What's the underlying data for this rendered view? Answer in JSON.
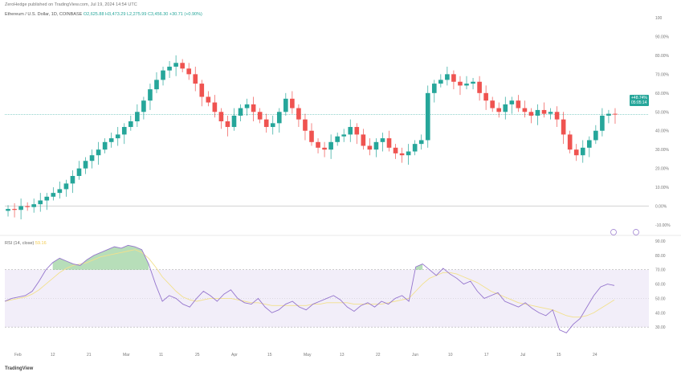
{
  "header": {
    "published": "ZeroHedge published on TradingView.com, Jul 19, 2024 14:54 UTC",
    "symbol": "Ethereum / U.S. Dollar, 1D, COINBASE",
    "ohlc": "O2,625.88 H3,473.29 L2,275.99 C3,456.30 +30.71 (+0.90%)"
  },
  "rsi_label": {
    "name": "RSI (14, close)",
    "value": "59.16"
  },
  "price_tags": {
    "pct": "+48.74%",
    "sub": "05:05:14"
  },
  "footer": {
    "brand": "TradingView"
  },
  "chart_data": [
    {
      "type": "candlestick",
      "yaxis_unit": "%",
      "ylim": [
        -10,
        100
      ],
      "yticks": [
        "100",
        "90.00%",
        "80.00%",
        "70.00%",
        "60.00%",
        "50.00%",
        "40.00%",
        "30.00%",
        "20.00%",
        "10.00%",
        "0.00%",
        "-10.00%"
      ],
      "x_tick_labels": [
        "Feb",
        "12",
        "21",
        "Mar",
        "11",
        "25",
        "Apr",
        "15",
        "May",
        "13",
        "22",
        "Jun",
        "10",
        "17",
        "Jul",
        "15",
        "24"
      ],
      "series": [
        {
          "name": "price_pct",
          "values": [
            -1.5,
            -2,
            0,
            -0.5,
            1,
            3,
            5,
            7,
            9,
            12,
            16,
            20,
            24,
            27,
            30,
            34,
            36,
            38,
            42,
            45,
            50,
            56,
            62,
            67,
            72,
            74,
            76,
            73,
            70,
            65,
            58,
            55,
            50,
            45,
            42,
            48,
            52,
            54,
            50,
            46,
            42,
            44,
            50,
            57,
            52,
            46,
            40,
            34,
            31,
            30,
            34,
            37,
            38,
            42,
            38,
            32,
            30,
            34,
            36,
            31,
            28,
            27,
            29,
            33,
            35,
            60,
            65,
            67,
            70,
            66,
            64,
            65,
            66,
            60,
            56,
            52,
            50,
            54,
            56,
            52,
            50,
            48,
            51,
            49,
            50,
            46,
            38,
            30,
            27,
            31,
            35,
            40,
            48,
            49,
            48.7
          ]
        }
      ]
    },
    {
      "type": "line",
      "name": "RSI (14, close)",
      "ylim": [
        20,
        90
      ],
      "yticks": [
        "90.00",
        "80.00",
        "70.00",
        "60.00",
        "50.00",
        "40.00",
        "30.00"
      ],
      "bands": [
        30,
        70
      ],
      "series": [
        {
          "name": "RSI",
          "values": [
            48,
            50,
            51,
            52,
            55,
            62,
            70,
            75,
            78,
            76,
            74,
            73,
            77,
            80,
            82,
            84,
            86,
            85,
            87,
            86,
            84,
            74,
            60,
            48,
            52,
            50,
            46,
            44,
            50,
            55,
            52,
            48,
            53,
            56,
            50,
            47,
            46,
            50,
            44,
            40,
            42,
            46,
            48,
            44,
            42,
            46,
            48,
            50,
            52,
            49,
            44,
            41,
            45,
            47,
            44,
            48,
            46,
            50,
            52,
            48,
            72,
            74,
            70,
            66,
            71,
            67,
            64,
            60,
            62,
            55,
            50,
            52,
            54,
            48,
            46,
            44,
            47,
            43,
            40,
            38,
            42,
            28,
            26,
            32,
            36,
            44,
            52,
            58,
            60,
            59
          ]
        },
        {
          "name": "MA",
          "values": [
            48,
            49,
            50,
            51,
            53,
            56,
            60,
            64,
            68,
            71,
            73,
            74,
            75,
            77,
            79,
            80,
            81,
            82,
            83,
            84,
            82,
            78,
            72,
            65,
            60,
            55,
            51,
            49,
            48,
            49,
            50,
            50,
            50,
            50,
            49,
            48,
            47,
            47,
            46,
            45,
            45,
            45,
            45,
            45,
            45,
            46,
            46,
            47,
            47,
            47,
            47,
            46,
            46,
            46,
            46,
            46,
            47,
            48,
            49,
            50,
            55,
            60,
            64,
            66,
            68,
            68,
            67,
            65,
            63,
            61,
            58,
            55,
            53,
            51,
            49,
            47,
            46,
            45,
            44,
            43,
            42,
            40,
            38,
            37,
            37,
            38,
            40,
            43,
            46,
            49
          ]
        }
      ]
    }
  ]
}
